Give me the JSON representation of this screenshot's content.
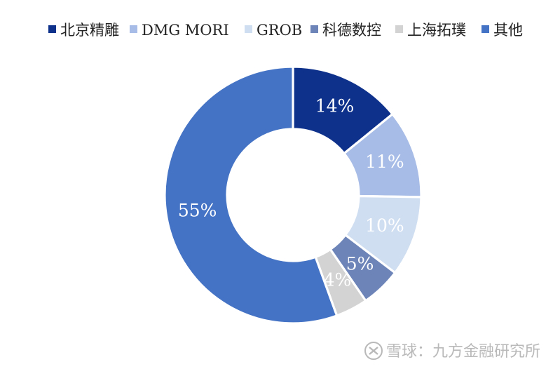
{
  "chart_data": {
    "type": "pie",
    "variant": "donut",
    "categories": [
      "北京精雕",
      "DMG MORI",
      "GROB",
      "科德数控",
      "上海拓璞",
      "其他"
    ],
    "values": [
      14,
      11,
      10,
      5,
      4,
      55
    ],
    "value_labels": [
      "14%",
      "11%",
      "10%",
      "5%",
      "4%",
      "55%"
    ],
    "colors": [
      "#0E318C",
      "#A7BCE6",
      "#D0DEF1",
      "#6C84B8",
      "#D3D3D3",
      "#4472C4"
    ],
    "legend_position": "top",
    "start_angle_deg": 0,
    "direction": "clockwise"
  },
  "watermark": {
    "text": "雪球：九方金融研究所",
    "icon": "snowball-logo-icon"
  }
}
